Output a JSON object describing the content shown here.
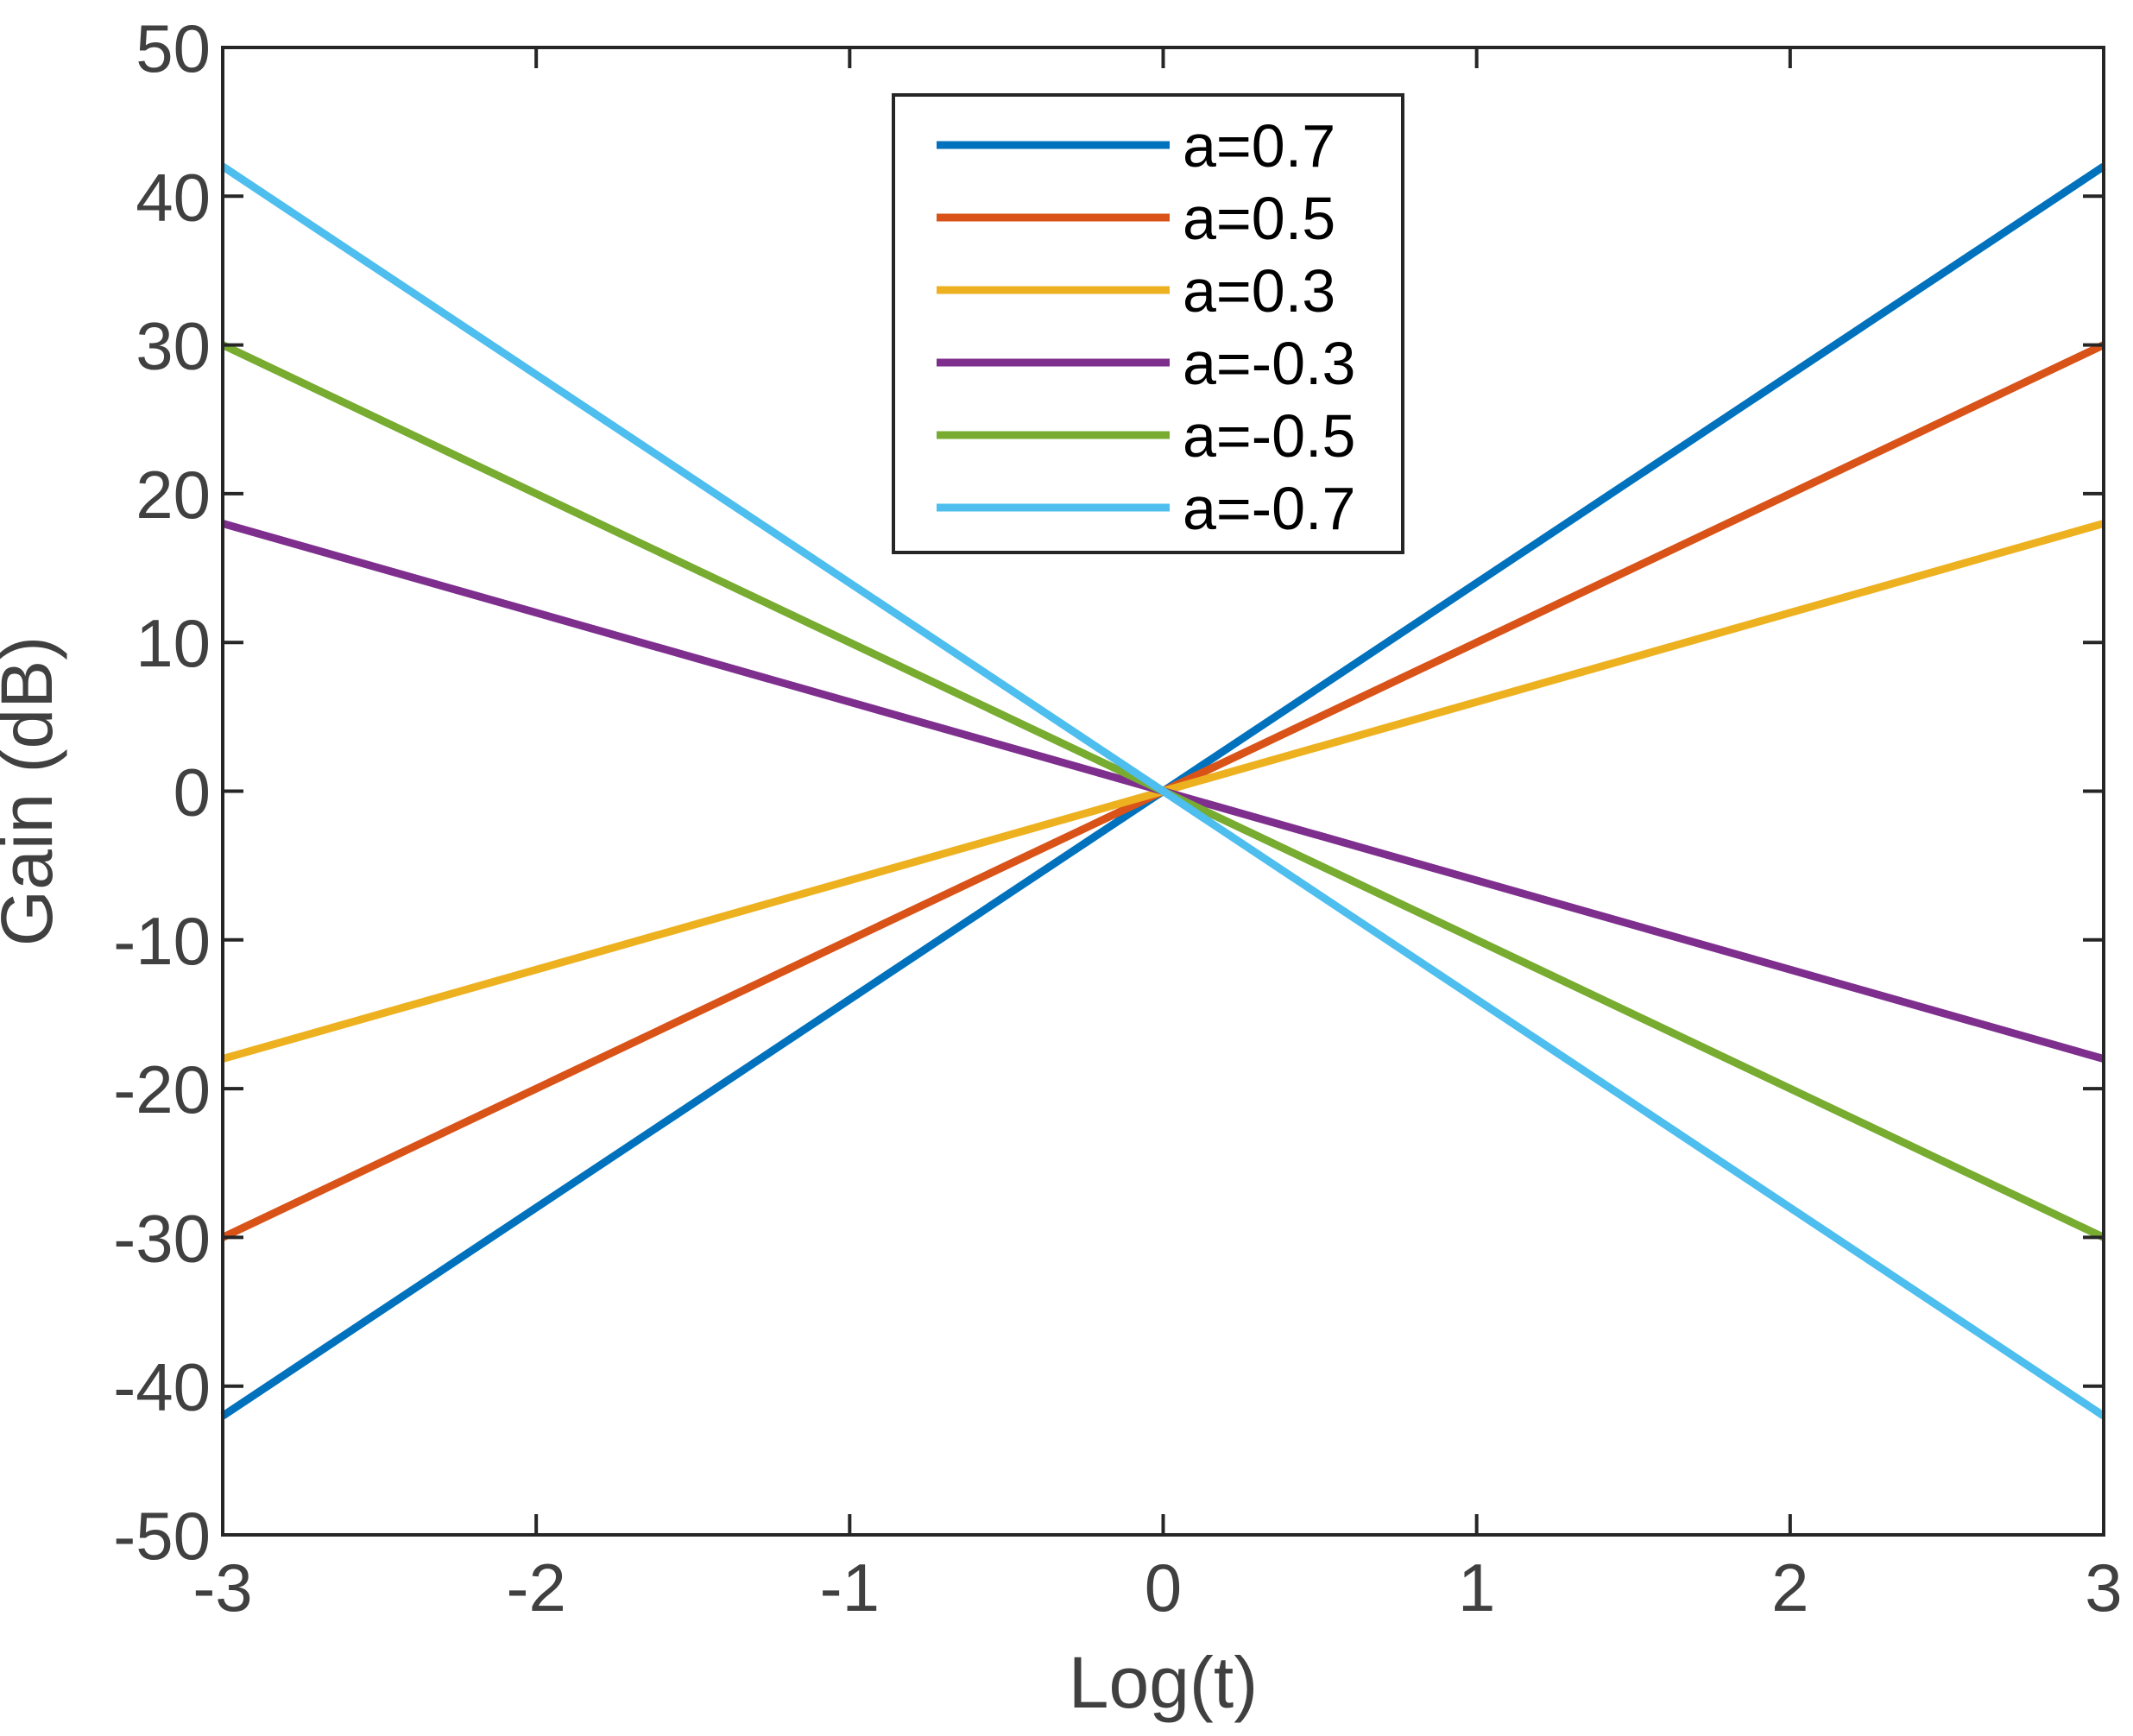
{
  "chart_data": {
    "type": "line",
    "title": "",
    "xlabel": "Log(t)",
    "ylabel": "Gain (dB)",
    "xlim": [
      -3,
      3
    ],
    "ylim": [
      -50,
      50
    ],
    "xticks": [
      -3,
      -2,
      -1,
      0,
      1,
      2,
      3
    ],
    "yticks": [
      -50,
      -40,
      -30,
      -20,
      -10,
      0,
      10,
      20,
      30,
      40,
      50
    ],
    "xtick_labels": [
      "-3",
      "-2",
      "-1",
      "0",
      "1",
      "2",
      "3"
    ],
    "ytick_labels": [
      "-50",
      "-40",
      "-30",
      "-20",
      "-10",
      "0",
      "10",
      "20",
      "30",
      "40",
      "50"
    ],
    "grid": false,
    "legend_position": "top-center",
    "x": [
      -3,
      3
    ],
    "series": [
      {
        "name": "a=0.7",
        "color": "#0072BD",
        "values": [
          -42,
          42
        ]
      },
      {
        "name": "a=0.5",
        "color": "#D95319",
        "values": [
          -30,
          30
        ]
      },
      {
        "name": "a=0.3",
        "color": "#EDB120",
        "values": [
          -18,
          18
        ]
      },
      {
        "name": "a=-0.3",
        "color": "#7E2F8E",
        "values": [
          18,
          -18
        ]
      },
      {
        "name": "a=-0.5",
        "color": "#77AC30",
        "values": [
          30,
          -30
        ]
      },
      {
        "name": "a=-0.7",
        "color": "#4DBEEE",
        "values": [
          42,
          -42
        ]
      }
    ]
  }
}
